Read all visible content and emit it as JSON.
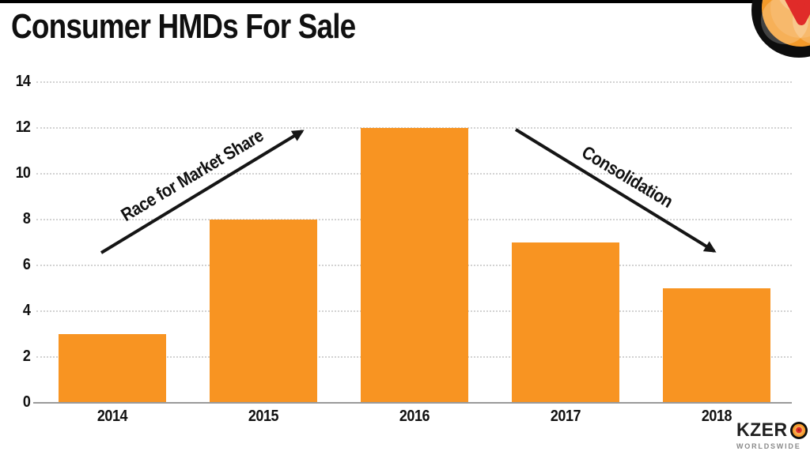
{
  "slide": {
    "title": "Consumer HMDs For Sale"
  },
  "chart_data": {
    "type": "bar",
    "title": "Consumer HMDs For Sale",
    "categories": [
      "2014",
      "2015",
      "2016",
      "2017",
      "2018"
    ],
    "values": [
      3,
      8,
      12,
      7,
      5
    ],
    "xlabel": "",
    "ylabel": "",
    "ylim": [
      0,
      14
    ],
    "yticks": [
      0,
      2,
      4,
      6,
      8,
      10,
      12,
      14
    ],
    "grid": "horizontal-dotted",
    "legend": "none",
    "bar_color": "#F89422",
    "annotations": [
      {
        "text": "Race for Market Share",
        "trend": "up",
        "arrow_color": "#151515"
      },
      {
        "text": "Consolidation",
        "trend": "down",
        "arrow_color": "#151515"
      }
    ]
  },
  "branding": {
    "wordmark_prefix": "KZER",
    "subtitle": "WORLDSWIDE",
    "colors": {
      "orange": "#F49A2A",
      "red": "#E02B29",
      "black": "#0D0D0D"
    }
  }
}
